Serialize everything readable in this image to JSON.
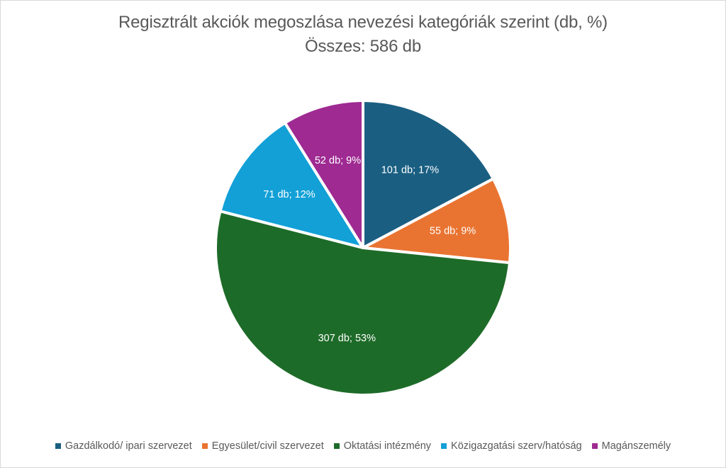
{
  "chart_data": {
    "type": "pie",
    "title": "Regisztrált akciók megoszlása nevezési kategóriák szerint (db, %)",
    "subtitle": "Összes: 586 db",
    "total": 586,
    "categories": [
      "Gazdálkodó/ ipari szervezet",
      "Egyesület/civil szervezet",
      "Oktatási intézmény",
      "Közigazgatási szerv/hatóság",
      "Magánszemély"
    ],
    "values": [
      101,
      55,
      307,
      71,
      52
    ],
    "percents": [
      17,
      9,
      53,
      12,
      9
    ],
    "labels": [
      "101 db; 17%",
      "55 db; 9%",
      "307 db; 53%",
      "71 db; 12%",
      "52 db; 9%"
    ],
    "colors": [
      "#1a5f82",
      "#e97431",
      "#1d6b28",
      "#12a0d7",
      "#9e2a92"
    ],
    "legend_position": "bottom",
    "start_angle": "12 o'clock, clockwise"
  },
  "header": {
    "title": "Regisztrált akciók megoszlása nevezési kategóriák szerint (db, %)",
    "subtitle": "Összes: 586 db"
  },
  "legend": [
    {
      "label": "Gazdálkodó/ ipari szervezet",
      "color": "#1a5f82"
    },
    {
      "label": "Egyesület/civil szervezet",
      "color": "#e97431"
    },
    {
      "label": "Oktatási intézmény",
      "color": "#1d6b28"
    },
    {
      "label": "Közigazgatási szerv/hatóság",
      "color": "#12a0d7"
    },
    {
      "label": "Magánszemély",
      "color": "#9e2a92"
    }
  ]
}
